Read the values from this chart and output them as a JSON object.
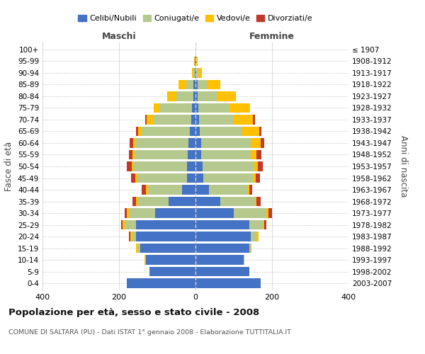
{
  "age_groups": [
    "0-4",
    "5-9",
    "10-14",
    "15-19",
    "20-24",
    "25-29",
    "30-34",
    "35-39",
    "40-44",
    "45-49",
    "50-54",
    "55-59",
    "60-64",
    "65-69",
    "70-74",
    "75-79",
    "80-84",
    "85-89",
    "90-94",
    "95-99",
    "100+"
  ],
  "birth_years": [
    "2003-2007",
    "1998-2002",
    "1993-1997",
    "1988-1992",
    "1983-1987",
    "1978-1982",
    "1973-1977",
    "1968-1972",
    "1963-1967",
    "1958-1962",
    "1953-1957",
    "1948-1952",
    "1943-1947",
    "1938-1942",
    "1933-1937",
    "1928-1932",
    "1923-1927",
    "1918-1922",
    "1913-1917",
    "1908-1912",
    "≤ 1907"
  ],
  "males": {
    "celibi": [
      180,
      120,
      130,
      145,
      155,
      155,
      105,
      70,
      35,
      22,
      22,
      20,
      18,
      15,
      12,
      10,
      5,
      5,
      2,
      1,
      0
    ],
    "coniugati": [
      0,
      0,
      2,
      5,
      10,
      30,
      70,
      80,
      90,
      130,
      140,
      140,
      140,
      125,
      100,
      85,
      45,
      20,
      3,
      1,
      0
    ],
    "vedovi": [
      0,
      0,
      2,
      5,
      5,
      5,
      5,
      5,
      5,
      5,
      5,
      5,
      5,
      10,
      15,
      15,
      25,
      20,
      5,
      2,
      0
    ],
    "divorziati": [
      0,
      0,
      0,
      0,
      5,
      5,
      5,
      10,
      10,
      12,
      12,
      10,
      10,
      5,
      5,
      0,
      0,
      0,
      0,
      0,
      0
    ]
  },
  "females": {
    "nubili": [
      170,
      140,
      125,
      140,
      145,
      140,
      100,
      65,
      35,
      20,
      18,
      15,
      15,
      12,
      10,
      8,
      5,
      5,
      2,
      1,
      0
    ],
    "coniugate": [
      0,
      0,
      2,
      5,
      15,
      35,
      85,
      90,
      100,
      130,
      135,
      130,
      130,
      110,
      90,
      80,
      50,
      25,
      5,
      1,
      0
    ],
    "vedove": [
      0,
      0,
      0,
      2,
      5,
      5,
      5,
      5,
      5,
      8,
      10,
      15,
      25,
      45,
      50,
      55,
      50,
      35,
      10,
      3,
      0
    ],
    "divorziate": [
      0,
      0,
      0,
      0,
      0,
      5,
      10,
      10,
      8,
      10,
      12,
      12,
      10,
      5,
      5,
      0,
      0,
      0,
      0,
      0,
      0
    ]
  },
  "colors": {
    "celibi_nubili": "#4472c4",
    "coniugati": "#b5c98e",
    "vedovi": "#ffc000",
    "divorziati": "#c0392b"
  },
  "title": "Popolazione per età, sesso e stato civile - 2008",
  "subtitle": "COMUNE DI SALTARA (PU) - Dati ISTAT 1° gennaio 2008 - Elaborazione TUTTITALIA.IT",
  "xlabel_left": "Maschi",
  "xlabel_right": "Femmine",
  "ylabel_left": "Fasce di età",
  "ylabel_right": "Anni di nascita",
  "xlim": 400,
  "background_color": "#ffffff",
  "grid_color": "#cccccc"
}
